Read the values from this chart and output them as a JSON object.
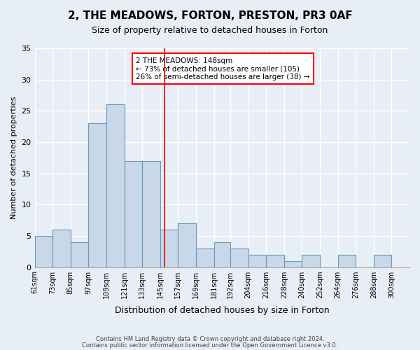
{
  "title": "2, THE MEADOWS, FORTON, PRESTON, PR3 0AF",
  "subtitle": "Size of property relative to detached houses in Forton",
  "xlabel": "Distribution of detached houses by size in Forton",
  "ylabel": "Number of detached properties",
  "bar_color": "#c8d8e8",
  "bar_edge_color": "#6699bb",
  "background_color": "#e8eef5",
  "grid_color": "#ffffff",
  "bin_labels": [
    "61sqm",
    "73sqm",
    "85sqm",
    "97sqm",
    "109sqm",
    "121sqm",
    "133sqm",
    "145sqm",
    "157sqm",
    "169sqm",
    "181sqm",
    "192sqm",
    "204sqm",
    "216sqm",
    "228sqm",
    "240sqm",
    "252sqm",
    "264sqm",
    "276sqm",
    "288sqm",
    "300sqm"
  ],
  "bin_edges": [
    61,
    73,
    85,
    97,
    109,
    121,
    133,
    145,
    157,
    169,
    181,
    192,
    204,
    216,
    228,
    240,
    252,
    264,
    276,
    288,
    300,
    312
  ],
  "counts": [
    5,
    6,
    4,
    23,
    26,
    17,
    17,
    6,
    7,
    3,
    4,
    3,
    2,
    2,
    1,
    2,
    0,
    2,
    0,
    2,
    0
  ],
  "marker_value": 148,
  "marker_label": "2 THE MEADOWS: 148sqm",
  "annotation_line1": "← 73% of detached houses are smaller (105)",
  "annotation_line2": "26% of semi-detached houses are larger (38) →",
  "ylim": [
    0,
    35
  ],
  "yticks": [
    0,
    5,
    10,
    15,
    20,
    25,
    30,
    35
  ],
  "footer_line1": "Contains HM Land Registry data © Crown copyright and database right 2024.",
  "footer_line2": "Contains public sector information licensed under the Open Government Licence v3.0."
}
